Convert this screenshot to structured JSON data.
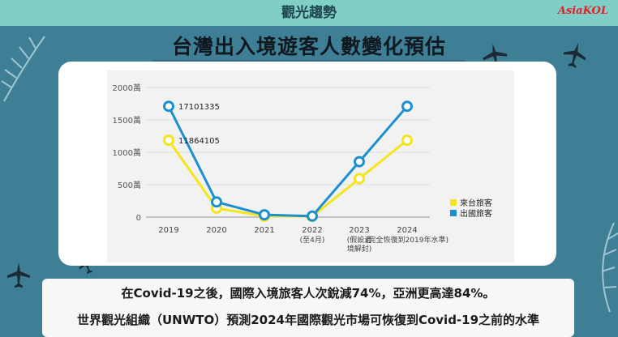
{
  "header": {
    "section": "觀光趨勢",
    "brand": "AsiaKOL"
  },
  "title": "台灣出入境遊客人數變化預估",
  "notes": [
    "在Covid-19之後，國際入境旅客人次銳減74%，亞洲更高達84%。",
    "世界觀光組織（UNWTO）預測2024年國際觀光市場可恢復到Covid-19之前的水準"
  ],
  "chart_data": {
    "type": "line",
    "categories": [
      "2019",
      "2020",
      "2021",
      "2022",
      "2023",
      "2024"
    ],
    "category_sublabels": [
      [],
      [],
      [],
      [
        "(至4月)"
      ],
      [
        "(假設邊",
        "境解封)"
      ],
      [
        "(完全恢復到2019年水準)"
      ]
    ],
    "yticks": [
      "0",
      "500萬",
      "1000萬",
      "1500萬",
      "2000萬"
    ],
    "ylim": [
      0,
      2000
    ],
    "unit": "萬",
    "series": [
      {
        "name": "來台旅客",
        "color": "#f5e51c",
        "values": [
          1186,
          138,
          14,
          10,
          593,
          1186
        ]
      },
      {
        "name": "出國旅客",
        "color": "#1c8fd0",
        "values": [
          1710,
          234,
          36,
          15,
          855,
          1710
        ]
      }
    ],
    "annotations": [
      "17101335",
      "11864105"
    ],
    "legend_position": "right",
    "grid": true
  }
}
